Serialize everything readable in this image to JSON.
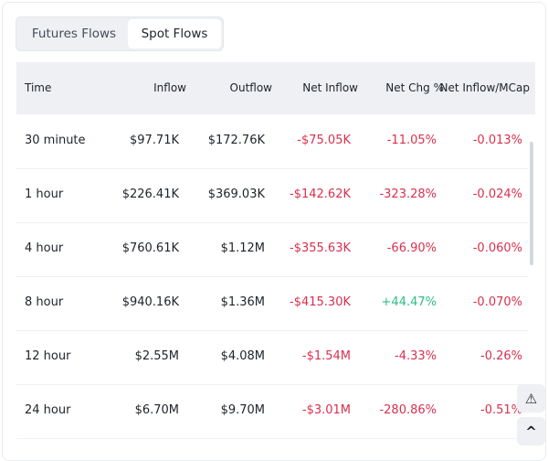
{
  "tabs": [
    {
      "label": "Futures Flows",
      "active": false
    },
    {
      "label": "Spot Flows",
      "active": true
    }
  ],
  "columns": [
    "Time",
    "Inflow",
    "Outflow",
    "Net Inflow",
    "Net Chg %",
    "Net Inflow/MCap"
  ],
  "rows": [
    {
      "time": "30 minute",
      "inflow": "$97.71K",
      "outflow": "$172.76K",
      "net": "-$75.05K",
      "chg": "-11.05%",
      "mcap": "-0.013%",
      "chg_pos": false
    },
    {
      "time": "1 hour",
      "inflow": "$226.41K",
      "outflow": "$369.03K",
      "net": "-$142.62K",
      "chg": "-323.28%",
      "mcap": "-0.024%",
      "chg_pos": false
    },
    {
      "time": "4 hour",
      "inflow": "$760.61K",
      "outflow": "$1.12M",
      "net": "-$355.63K",
      "chg": "-66.90%",
      "mcap": "-0.060%",
      "chg_pos": false
    },
    {
      "time": "8 hour",
      "inflow": "$940.16K",
      "outflow": "$1.36M",
      "net": "-$415.30K",
      "chg": "+44.47%",
      "mcap": "-0.070%",
      "chg_pos": true
    },
    {
      "time": "12 hour",
      "inflow": "$2.55M",
      "outflow": "$4.08M",
      "net": "-$1.54M",
      "chg": "-4.33%",
      "mcap": "-0.26%",
      "chg_pos": false
    },
    {
      "time": "24 hour",
      "inflow": "$6.70M",
      "outflow": "$9.70M",
      "net": "-$3.01M",
      "chg": "-280.86%",
      "mcap": "-0.51%",
      "chg_pos": false
    }
  ],
  "colors": {
    "negative": "#d9304e",
    "positive": "#2ebd85"
  },
  "floating": {
    "feedback_icon": "alert-badge-icon",
    "top_icon": "chevron-up-icon"
  }
}
